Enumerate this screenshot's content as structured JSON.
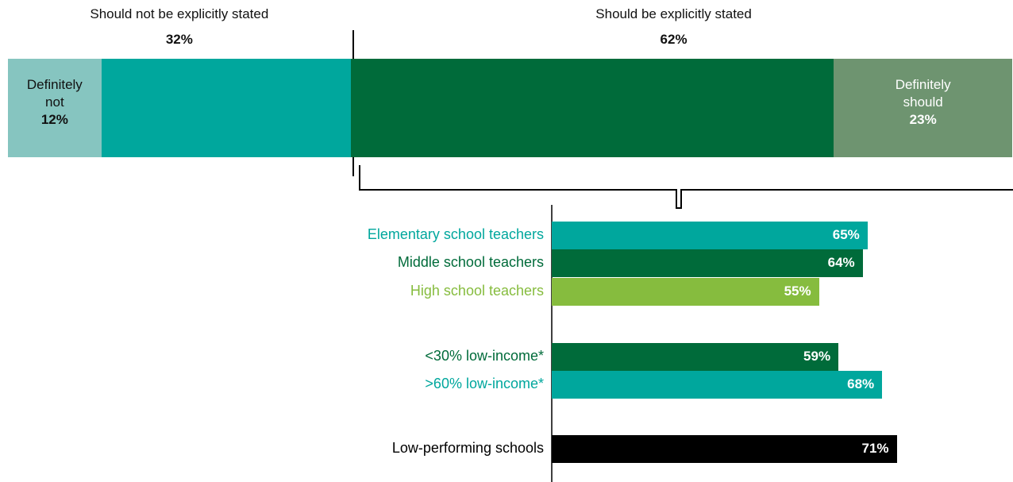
{
  "chart_data": {
    "type": "bar",
    "summary": [
      {
        "label": "Should not be explicitly stated",
        "value": 32,
        "value_label": "32%",
        "color": "#00a79d",
        "sub": {
          "label": "Definitely not",
          "value": 12,
          "value_label": "12%",
          "color": "#86c5c0",
          "text_color": "#111111"
        }
      },
      {
        "label": "Should be explicitly stated",
        "value": 62,
        "value_label": "62%",
        "color": "#006b3a",
        "sub": {
          "label": "Definitely should",
          "value": 23,
          "value_label": "23%",
          "color": "#6e9470",
          "text_color": "#ffffff"
        }
      }
    ],
    "categories": [
      "Elementary school teachers",
      "Middle school teachers",
      "High school teachers",
      "<30% low-income*",
      ">60% low-income*",
      "Low-performing schools"
    ],
    "values": [
      65,
      64,
      55,
      59,
      68,
      71
    ],
    "value_labels": [
      "65%",
      "64%",
      "55%",
      "59%",
      "68%",
      "71%"
    ],
    "colors": [
      "#00a79d",
      "#006b3a",
      "#86bc3e",
      "#006b3a",
      "#00a79d",
      "#000000"
    ]
  }
}
